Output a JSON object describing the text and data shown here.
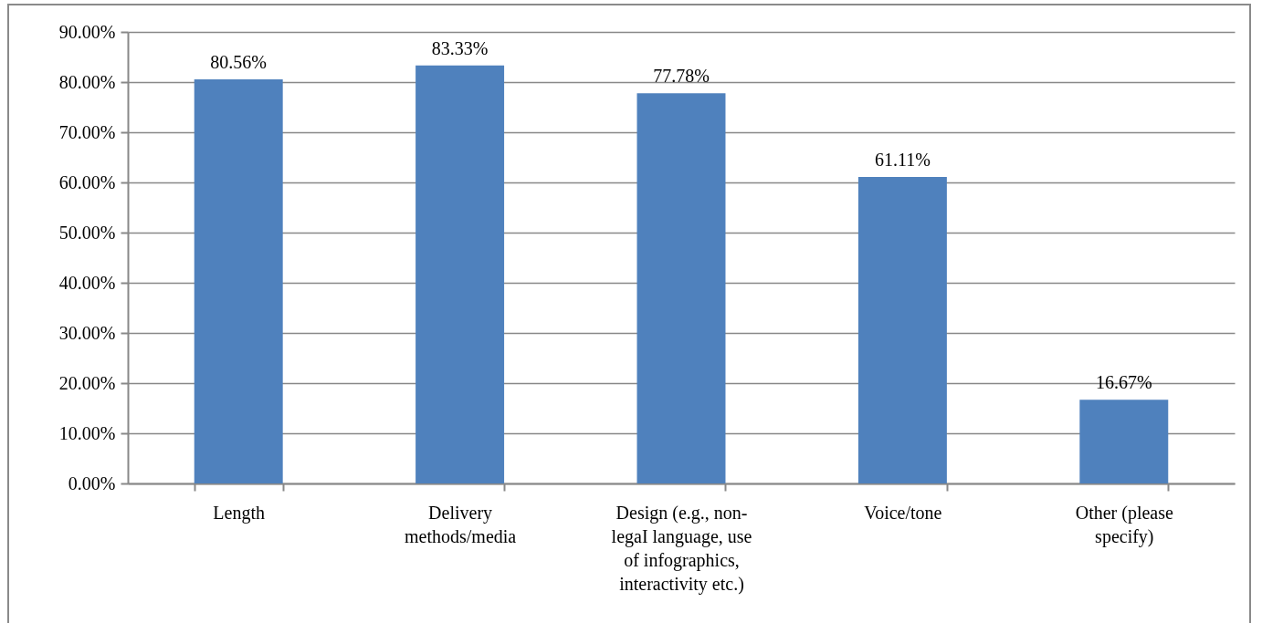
{
  "chart_data": {
    "type": "bar",
    "categories": [
      "Length",
      "Delivery methods/media",
      "Design (e.g., non-legaI language, use of infographics, interactivity etc.)",
      "Voice/tone",
      "Other (please specify)"
    ],
    "values": [
      80.56,
      83.33,
      77.78,
      61.11,
      16.67
    ],
    "value_labels": [
      "80.56%",
      "83.33%",
      "77.78%",
      "61.11%",
      "16.67%"
    ],
    "color": "#4f81bd",
    "ylim": [
      0,
      90
    ],
    "yticks": [
      {
        "value": 0,
        "label": "0.00%"
      },
      {
        "value": 10,
        "label": "10.00%"
      },
      {
        "value": 20,
        "label": "20.00%"
      },
      {
        "value": 30,
        "label": "30.00%"
      },
      {
        "value": 40,
        "label": "40.00%"
      },
      {
        "value": 50,
        "label": "50.00%"
      },
      {
        "value": 60,
        "label": "60.00%"
      },
      {
        "value": 70,
        "label": "70.00%"
      },
      {
        "value": 80,
        "label": "80.00%"
      },
      {
        "value": 90,
        "label": "90.00%"
      }
    ],
    "grid": true
  }
}
